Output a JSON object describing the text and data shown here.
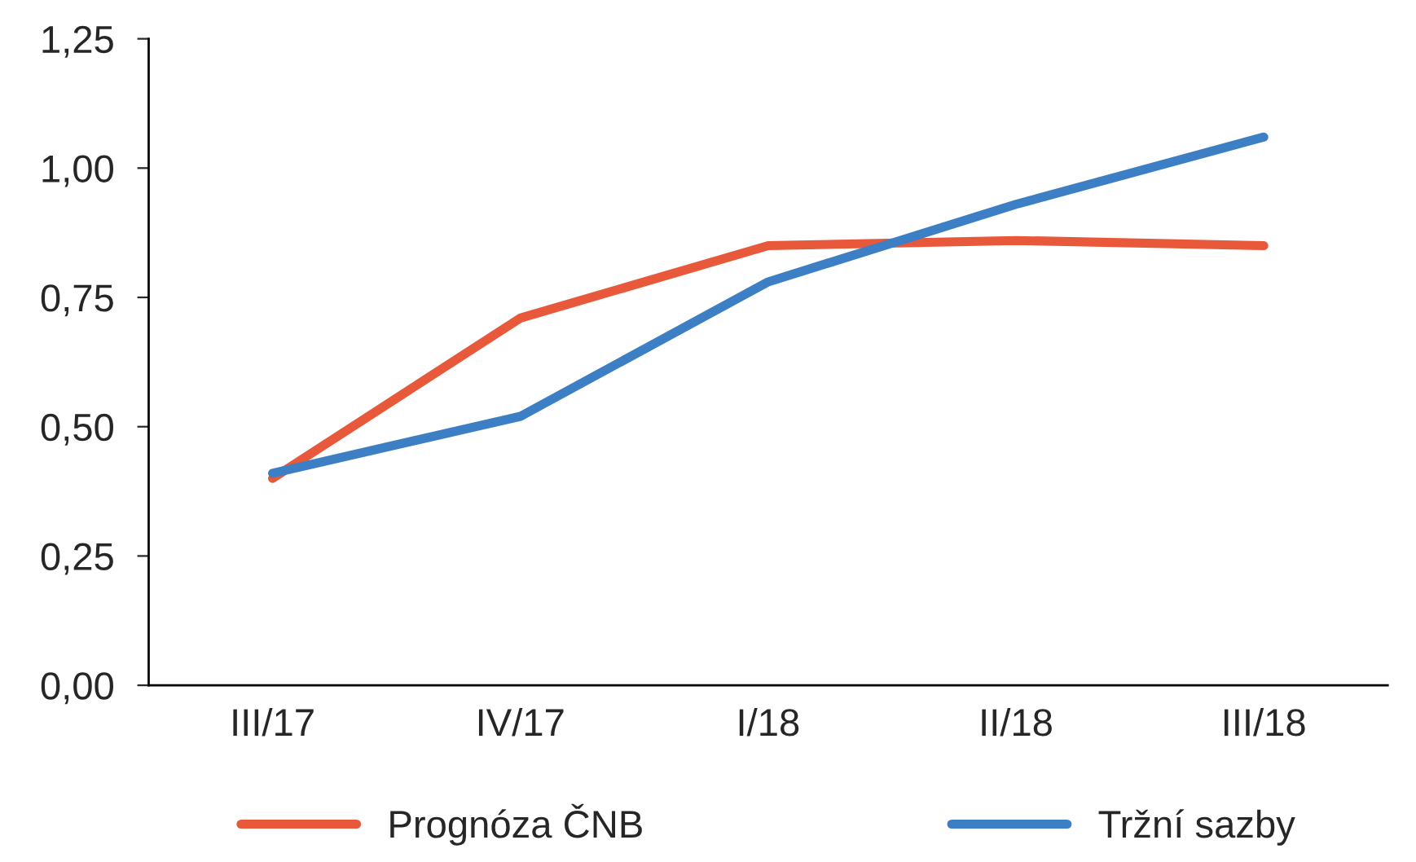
{
  "chart_data": {
    "type": "line",
    "categories": [
      "III/17",
      "IV/17",
      "I/18",
      "II/18",
      "III/18"
    ],
    "series": [
      {
        "name": "Prognóza ČNB",
        "color": "#e8593b",
        "values": [
          0.4,
          0.71,
          0.85,
          0.86,
          0.85
        ]
      },
      {
        "name": "Tržní sazby",
        "color": "#3d7fc4",
        "values": [
          0.41,
          0.52,
          0.78,
          0.93,
          1.06
        ]
      }
    ],
    "ylim": [
      0,
      1.25
    ],
    "yticks": [
      {
        "value": 0,
        "label": "0,00"
      },
      {
        "value": 0.25,
        "label": "0,25"
      },
      {
        "value": 0.5,
        "label": "0,50"
      },
      {
        "value": 0.75,
        "label": "0,75"
      },
      {
        "value": 1.0,
        "label": "1,00"
      },
      {
        "value": 1.25,
        "label": "1,25"
      }
    ],
    "grid": false,
    "legend": "bottom",
    "marker": "none",
    "line_style": "solid"
  }
}
